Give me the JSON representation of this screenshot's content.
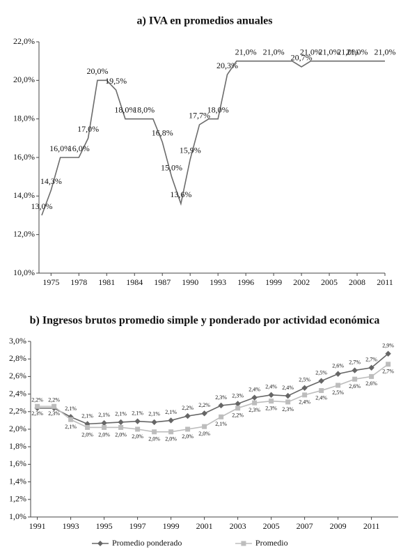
{
  "chart_data": [
    {
      "type": "line",
      "title": "a) IVA en promedios anuales",
      "x": [
        1974,
        1975,
        1976,
        1977,
        1978,
        1979,
        1980,
        1981,
        1982,
        1983,
        1984,
        1985,
        1986,
        1987,
        1988,
        1989,
        1990,
        1991,
        1992,
        1993,
        1994,
        1995,
        1996,
        1997,
        1998,
        1999,
        2000,
        2001,
        2002,
        2003,
        2004,
        2005,
        2006,
        2007,
        2008,
        2009,
        2010,
        2011
      ],
      "series": [
        {
          "color": "#6b6b6b",
          "values": [
            13.0,
            14.3,
            16.0,
            16.0,
            16.0,
            17.0,
            20.0,
            20.0,
            19.5,
            18.0,
            18.0,
            18.0,
            18.0,
            16.8,
            15.0,
            13.6,
            15.9,
            17.7,
            18.0,
            18.0,
            20.3,
            21.0,
            21.0,
            21.0,
            21.0,
            21.0,
            21.0,
            21.0,
            20.7,
            21.0,
            21.0,
            21.0,
            21.0,
            21.0,
            21.0,
            21.0,
            21.0,
            21.0
          ],
          "value_labels": [
            "13,0%",
            "14,3%",
            "16,0%",
            null,
            "16,0%",
            "17,0%",
            "20,0%",
            null,
            "19,5%",
            "18,0%",
            null,
            "18,0%",
            null,
            "16,8%",
            "15,0%",
            "13,6%",
            "15,9%",
            "17,7%",
            null,
            "18,0%",
            "20,3%",
            null,
            "21,0%",
            null,
            null,
            "21,0%",
            null,
            null,
            "20,7%",
            "21,0%",
            null,
            "21,0%",
            null,
            "21,0%",
            "21,0%",
            null,
            null,
            "21,0%"
          ]
        }
      ],
      "xlim": [
        1973.7,
        2011
      ],
      "xticks": [
        1975,
        1978,
        1981,
        1984,
        1987,
        1990,
        1993,
        1996,
        1999,
        2002,
        2005,
        2008,
        2011
      ],
      "ylim": [
        10,
        22
      ],
      "yticks": [
        {
          "value": 10,
          "label": "10,0%"
        },
        {
          "value": 12,
          "label": "12,0%"
        },
        {
          "value": 14,
          "label": "14,0%"
        },
        {
          "value": 16,
          "label": "16,0%"
        },
        {
          "value": 18,
          "label": "18,0%"
        },
        {
          "value": 20,
          "label": "20,0%"
        },
        {
          "value": 22,
          "label": "22,0%"
        }
      ]
    },
    {
      "type": "line",
      "title": "b) Ingresos brutos promedio simple y ponderado por actividad económica",
      "x": [
        1991,
        1992,
        1993,
        1994,
        1995,
        1996,
        1997,
        1998,
        1999,
        2000,
        2001,
        2002,
        2003,
        2004,
        2005,
        2006,
        2007,
        2008,
        2009,
        2010,
        2011,
        2012
      ],
      "series": [
        {
          "name": "Promedio ponderado",
          "color": "#666666",
          "marker": "diamond",
          "values": [
            2.24,
            2.24,
            2.14,
            2.06,
            2.07,
            2.08,
            2.09,
            2.08,
            2.1,
            2.15,
            2.18,
            2.27,
            2.29,
            2.36,
            2.39,
            2.38,
            2.47,
            2.55,
            2.63,
            2.67,
            2.7,
            2.86
          ],
          "value_labels": [
            "2,2%",
            "2,2%",
            "2,1%",
            "2,1%",
            "2,1%",
            "2,1%",
            "2,1%",
            "2,1%",
            "2,1%",
            "2,2%",
            "2,2%",
            "2,3%",
            "2,3%",
            "2,4%",
            "2,4%",
            "2,4%",
            "2,5%",
            "2,5%",
            "2,6%",
            "2,7%",
            "2,7%",
            "2,9%"
          ]
        },
        {
          "name": "Promedio",
          "color": "#bdbdbd",
          "marker": "square",
          "values": [
            2.26,
            2.26,
            2.11,
            2.02,
            2.02,
            2.02,
            2.0,
            1.97,
            1.97,
            2.0,
            2.03,
            2.14,
            2.24,
            2.3,
            2.32,
            2.31,
            2.39,
            2.44,
            2.5,
            2.57,
            2.6,
            2.74
          ],
          "value_labels": [
            "2,3%",
            "2,3%",
            "2,1%",
            "2,0%",
            "2,0%",
            "2,0%",
            "2,0%",
            "2,0%",
            "2,0%",
            "2,0%",
            "2,0%",
            "2,1%",
            "2,2%",
            "2,3%",
            "2,3%",
            "2,3%",
            "2,4%",
            "2,4%",
            "2,5%",
            "2,6%",
            "2,6%",
            "2,7%"
          ]
        }
      ],
      "xlim": [
        1990.6,
        2012.6
      ],
      "xticks": [
        1991,
        1993,
        1995,
        1997,
        1999,
        2001,
        2003,
        2005,
        2007,
        2009,
        2011
      ],
      "ylim": [
        1.0,
        3.0
      ],
      "yticks": [
        {
          "value": 1.0,
          "label": "1,0%"
        },
        {
          "value": 1.2,
          "label": "1,2%"
        },
        {
          "value": 1.4,
          "label": "1,4%"
        },
        {
          "value": 1.6,
          "label": "1,6%"
        },
        {
          "value": 1.8,
          "label": "1,8%"
        },
        {
          "value": 2.0,
          "label": "2,0%"
        },
        {
          "value": 2.2,
          "label": "2,2%"
        },
        {
          "value": 2.4,
          "label": "2,4%"
        },
        {
          "value": 2.6,
          "label": "2,6%"
        },
        {
          "value": 2.8,
          "label": "2,8%"
        },
        {
          "value": 3.0,
          "label": "3,0%"
        }
      ],
      "legend": "bottom"
    }
  ]
}
